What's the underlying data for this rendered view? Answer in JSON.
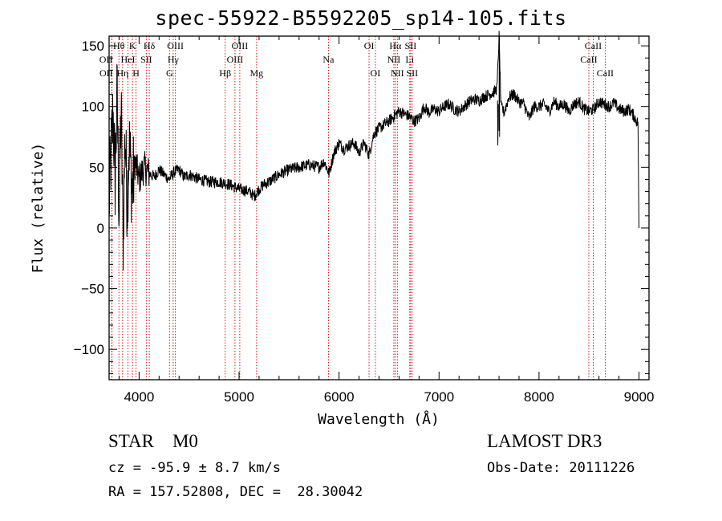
{
  "header": {
    "title": "spec-55922-B5592205_sp14-105.fits"
  },
  "object": {
    "class": "STAR",
    "subclass": "M0",
    "class_line": "STAR    M0",
    "cz": "cz = -95.9 ± 8.7 km/s",
    "radec": "RA = 157.52808, DEC =  28.30042",
    "survey": "LAMOST DR3",
    "obs_date": "Obs-Date: 20111226"
  },
  "chart_data": {
    "type": "line",
    "title": "spec-55922-B5592205_sp14-105.fits",
    "xlabel": "Wavelength (Å)",
    "ylabel": "Flux (relative)",
    "xlim": [
      3700,
      9100
    ],
    "ylim": [
      -125,
      158
    ],
    "xticks": [
      4000,
      5000,
      6000,
      7000,
      8000,
      9000
    ],
    "yticks": [
      -100,
      -50,
      0,
      50,
      100,
      150
    ],
    "grid": false,
    "colors": {
      "line": "#000000",
      "marker": "#cc0000"
    },
    "series": [
      {
        "name": "flux",
        "x": [
          3700,
          3720,
          3740,
          3760,
          3780,
          3800,
          3820,
          3840,
          3860,
          3880,
          3900,
          3930,
          3960,
          4000,
          4050,
          4100,
          4150,
          4200,
          4250,
          4300,
          4350,
          4400,
          4450,
          4500,
          4600,
          4700,
          4800,
          4900,
          5000,
          5100,
          5150,
          5200,
          5250,
          5300,
          5400,
          5500,
          5600,
          5700,
          5800,
          5850,
          5900,
          5950,
          6000,
          6050,
          6100,
          6150,
          6200,
          6250,
          6300,
          6350,
          6400,
          6450,
          6500,
          6550,
          6600,
          6650,
          6700,
          6750,
          6800,
          6850,
          6900,
          6950,
          7000,
          7050,
          7100,
          7150,
          7200,
          7250,
          7300,
          7350,
          7400,
          7450,
          7500,
          7550,
          7580,
          7600,
          7620,
          7650,
          7700,
          7750,
          7800,
          7850,
          7900,
          7950,
          8000,
          8050,
          8100,
          8150,
          8200,
          8250,
          8300,
          8350,
          8400,
          8450,
          8500,
          8550,
          8600,
          8650,
          8700,
          8750,
          8800,
          8850,
          8900,
          8950,
          8990,
          9000
        ],
        "y": [
          20,
          60,
          95,
          40,
          110,
          10,
          100,
          -10,
          80,
          20,
          70,
          30,
          55,
          40,
          50,
          45,
          42,
          48,
          44,
          40,
          46,
          48,
          42,
          44,
          40,
          38,
          38,
          36,
          32,
          30,
          26,
          32,
          36,
          38,
          44,
          48,
          50,
          52,
          50,
          55,
          45,
          62,
          70,
          65,
          68,
          70,
          62,
          70,
          60,
          78,
          82,
          85,
          88,
          92,
          96,
          94,
          92,
          88,
          90,
          100,
          95,
          98,
          96,
          100,
          102,
          98,
          96,
          100,
          104,
          106,
          105,
          108,
          110,
          112,
          115,
          158,
          100,
          95,
          108,
          110,
          104,
          102,
          90,
          100,
          100,
          102,
          96,
          104,
          100,
          102,
          96,
          102,
          104,
          98,
          96,
          98,
          104,
          102,
          100,
          103,
          98,
          96,
          98,
          92,
          86,
          0
        ]
      }
    ],
    "line_markers": [
      {
        "label": "OII",
        "x": 3727,
        "row": 2,
        "align": "right"
      },
      {
        "label": "OII",
        "x": 3729,
        "row": 3,
        "align": "right"
      },
      {
        "label": "Hθ",
        "x": 3798,
        "row": 1,
        "align": "center"
      },
      {
        "label": "Hη",
        "x": 3835,
        "row": 3,
        "align": "center"
      },
      {
        "label": "HeI",
        "x": 3889,
        "row": 2,
        "align": "center"
      },
      {
        "label": "K",
        "x": 3934,
        "row": 1,
        "align": "center"
      },
      {
        "label": "H",
        "x": 3969,
        "row": 3,
        "align": "center"
      },
      {
        "label": "SII",
        "x": 4072,
        "row": 2,
        "align": "center"
      },
      {
        "label": "Hδ",
        "x": 4102,
        "row": 1,
        "align": "center"
      },
      {
        "label": "G",
        "x": 4304,
        "row": 3,
        "align": "center"
      },
      {
        "label": "Hγ",
        "x": 4341,
        "row": 2,
        "align": "center"
      },
      {
        "label": "OIII",
        "x": 4363,
        "row": 1,
        "align": "center"
      },
      {
        "label": "Hβ",
        "x": 4861,
        "row": 3,
        "align": "center"
      },
      {
        "label": "OIII",
        "x": 4959,
        "row": 2,
        "align": "center"
      },
      {
        "label": "OIII",
        "x": 5007,
        "row": 1,
        "align": "center"
      },
      {
        "label": "Mg",
        "x": 5175,
        "row": 3,
        "align": "center"
      },
      {
        "label": "Na",
        "x": 5894,
        "row": 2,
        "align": "center"
      },
      {
        "label": "OI",
        "x": 6300,
        "row": 1,
        "align": "center"
      },
      {
        "label": "OI",
        "x": 6363,
        "row": 3,
        "align": "center"
      },
      {
        "label": "NII",
        "x": 6548,
        "row": 2,
        "align": "center"
      },
      {
        "label": "Hα",
        "x": 6563,
        "row": 1,
        "align": "center"
      },
      {
        "label": "NII",
        "x": 6583,
        "row": 3,
        "align": "center"
      },
      {
        "label": "Li",
        "x": 6707,
        "row": 2,
        "align": "center"
      },
      {
        "label": "SII",
        "x": 6716,
        "row": 1,
        "align": "center"
      },
      {
        "label": "SII",
        "x": 6731,
        "row": 3,
        "align": "center"
      },
      {
        "label": "CaII",
        "x": 8498,
        "row": 2,
        "align": "center"
      },
      {
        "label": "CaII",
        "x": 8542,
        "row": 1,
        "align": "center"
      },
      {
        "label": "CaII",
        "x": 8662,
        "row": 3,
        "align": "center"
      }
    ]
  }
}
